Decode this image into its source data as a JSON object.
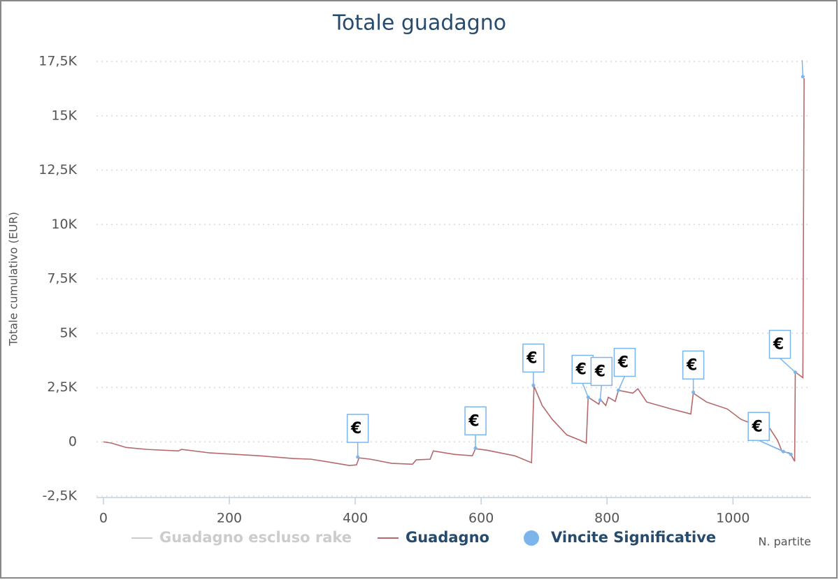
{
  "chart_data": {
    "type": "line",
    "title": "Totale guadagno",
    "y_axis_title": "Totale cumulativo (EUR)",
    "x_axis_title": "N. partite",
    "xlim": [
      -11,
      1124
    ],
    "xticks": [
      0,
      200,
      400,
      600,
      800,
      1000
    ],
    "ylim": [
      -2500,
      17500
    ],
    "yticks": [
      {
        "value": -2500,
        "label": "-2,5K"
      },
      0,
      {
        "value": 2500,
        "label": "2,5K"
      },
      {
        "value": 5000,
        "label": "5K"
      },
      {
        "value": 7500,
        "label": "7,5K"
      },
      {
        "value": 10000,
        "label": "10K"
      },
      {
        "value": 12500,
        "label": "12,5K"
      },
      {
        "value": 15000,
        "label": "15K"
      },
      {
        "value": 17500,
        "label": "17,5K"
      }
    ],
    "grid": true,
    "series": [
      {
        "name": "Guadagno escluso rake",
        "type": "line",
        "color": "#cccccc",
        "visible": false,
        "x": [],
        "values": []
      },
      {
        "name": "Guadagno",
        "type": "line",
        "color": "#b5696a",
        "visible": true,
        "x": [
          0,
          13,
          36,
          69,
          119,
          124,
          169,
          247,
          302,
          330,
          358,
          391,
          402,
          406,
          424,
          458,
          491,
          497,
          519,
          524,
          558,
          586,
          591,
          608,
          653,
          680,
          684,
          697,
          713,
          736,
          758,
          767,
          770,
          787,
          789,
          798,
          802,
          813,
          818,
          841,
          849,
          863,
          902,
          933,
          937,
          958,
          991,
          1013,
          1036,
          1058,
          1071,
          1078,
          1089,
          1092,
          1098,
          1099,
          1111,
          1113
        ],
        "values": [
          0,
          -60,
          -260,
          -350,
          -420,
          -350,
          -510,
          -640,
          -770,
          -800,
          -930,
          -1090,
          -1060,
          -740,
          -800,
          -990,
          -1030,
          -830,
          -800,
          -420,
          -580,
          -640,
          -320,
          -380,
          -640,
          -960,
          2560,
          1670,
          1030,
          320,
          60,
          -60,
          2050,
          1730,
          1960,
          1670,
          2050,
          1860,
          2370,
          2240,
          2440,
          1830,
          1510,
          1280,
          2240,
          1830,
          1510,
          1030,
          770,
          640,
          60,
          -450,
          -510,
          -580,
          -900,
          3210,
          2950,
          16730
        ]
      },
      {
        "name": "Vincite Significative",
        "type": "scatter",
        "color": "#7cb5ec",
        "visible": true,
        "x": [
          404,
          591,
          683,
          770,
          789,
          818,
          937,
          1080,
          1092,
          1099,
          1111
        ],
        "values": [
          -700,
          -290,
          2600,
          2050,
          1920,
          2370,
          2280,
          -450,
          -580,
          3200,
          16800
        ],
        "labels": [
          "€",
          "€",
          "€",
          "€",
          "€",
          "€",
          "€",
          "€",
          "€",
          "€",
          "€"
        ]
      }
    ]
  }
}
